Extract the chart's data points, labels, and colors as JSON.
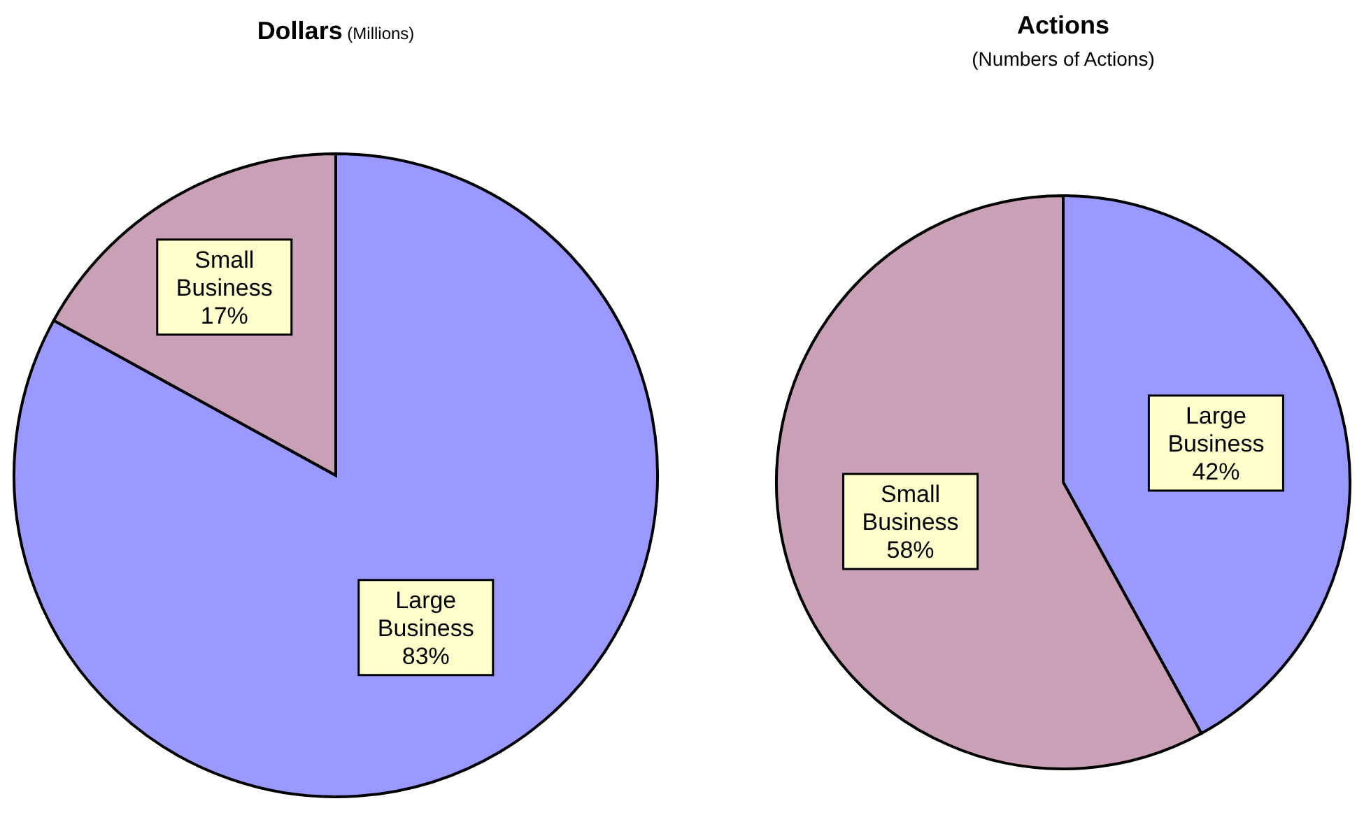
{
  "chart_data": [
    {
      "type": "pie",
      "title": "Dollars",
      "subtitle": "(Millions)",
      "categories": [
        "Large Business",
        "Small Business"
      ],
      "values": [
        83,
        17
      ],
      "value_labels": [
        "83%",
        "17%"
      ],
      "colors": [
        "#9999ff",
        "#c9a0b6"
      ],
      "legend": false
    },
    {
      "type": "pie",
      "title": "Actions",
      "subtitle": "(Numbers of Actions)",
      "categories": [
        "Large Business",
        "Small Business"
      ],
      "values": [
        42,
        58
      ],
      "value_labels": [
        "42%",
        "58%"
      ],
      "colors": [
        "#9999ff",
        "#c9a0b6"
      ],
      "legend": false
    }
  ]
}
